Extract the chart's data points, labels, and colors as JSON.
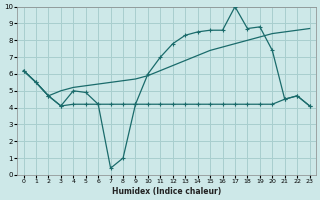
{
  "xlabel": "Humidex (Indice chaleur)",
  "bg_color": "#cde8e8",
  "grid_color": "#a8cece",
  "line_color": "#1a6b6b",
  "xlim": [
    -0.5,
    23.5
  ],
  "ylim": [
    0,
    10
  ],
  "xticks": [
    0,
    1,
    2,
    3,
    4,
    5,
    6,
    7,
    8,
    9,
    10,
    11,
    12,
    13,
    14,
    15,
    16,
    17,
    18,
    19,
    20,
    21,
    22,
    23
  ],
  "yticks": [
    0,
    1,
    2,
    3,
    4,
    5,
    6,
    7,
    8,
    9,
    10
  ],
  "line_zigzag_x": [
    0,
    1,
    2,
    3,
    4,
    5,
    6,
    7,
    8,
    9,
    10,
    11,
    12,
    13,
    14,
    15,
    16,
    17,
    18,
    19,
    20,
    21,
    22,
    23
  ],
  "line_zigzag_y": [
    6.2,
    5.5,
    4.7,
    4.1,
    5.0,
    4.9,
    4.2,
    0.4,
    1.0,
    4.2,
    6.0,
    7.0,
    7.8,
    8.3,
    8.5,
    8.6,
    8.6,
    10.0,
    8.7,
    8.8,
    7.4,
    4.5,
    4.7,
    4.1
  ],
  "line_rising_x": [
    0,
    1,
    2,
    3,
    4,
    5,
    6,
    7,
    8,
    9,
    10,
    11,
    12,
    13,
    14,
    15,
    16,
    17,
    18,
    19,
    20,
    21,
    22,
    23
  ],
  "line_rising_y": [
    6.2,
    5.5,
    4.7,
    5.0,
    5.2,
    5.3,
    5.4,
    5.5,
    5.6,
    5.7,
    5.9,
    6.2,
    6.5,
    6.8,
    7.1,
    7.4,
    7.6,
    7.8,
    8.0,
    8.2,
    8.4,
    8.5,
    8.6,
    8.7
  ],
  "line_flat_x": [
    0,
    1,
    2,
    3,
    4,
    5,
    6,
    7,
    8,
    9,
    10,
    11,
    12,
    13,
    14,
    15,
    16,
    17,
    18,
    19,
    20,
    21,
    22,
    23
  ],
  "line_flat_y": [
    6.2,
    5.5,
    4.7,
    4.1,
    4.2,
    4.2,
    4.2,
    4.2,
    4.2,
    4.2,
    4.2,
    4.2,
    4.2,
    4.2,
    4.2,
    4.2,
    4.2,
    4.2,
    4.2,
    4.2,
    4.2,
    4.5,
    4.7,
    4.1
  ]
}
